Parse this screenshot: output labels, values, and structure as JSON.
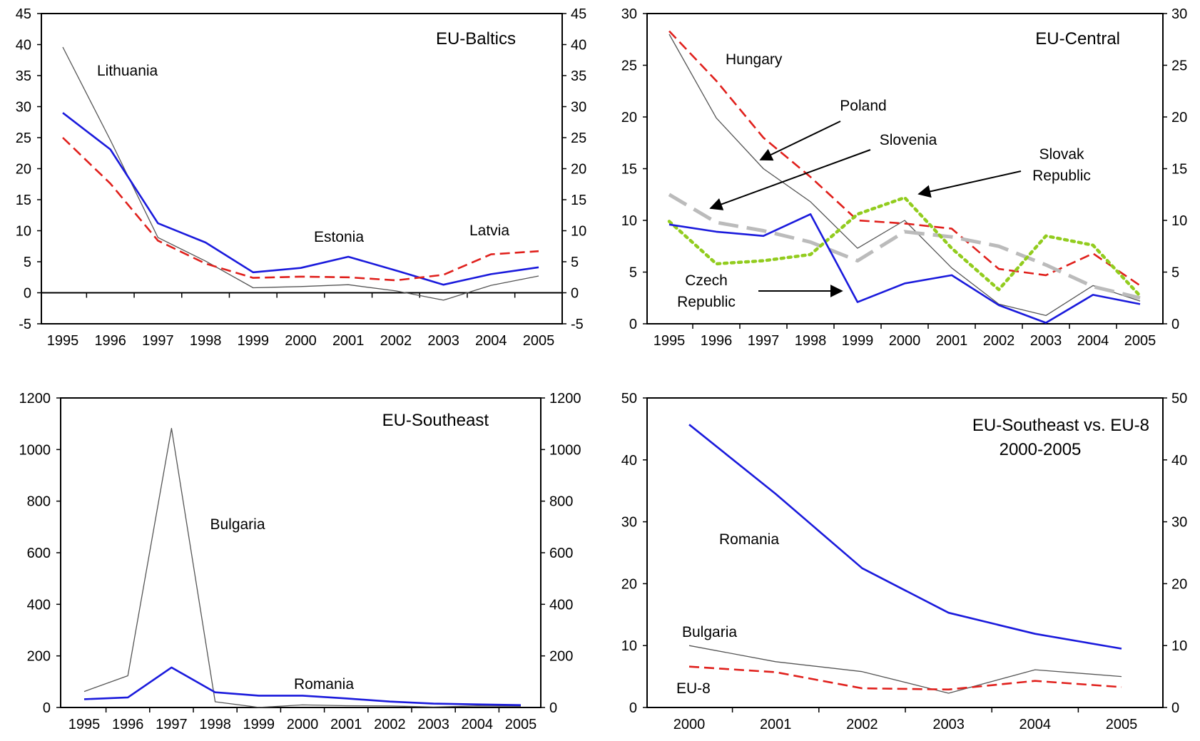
{
  "chart_data": [
    {
      "type": "line",
      "title": "EU-Baltics",
      "x": [
        "1995",
        "1996",
        "1997",
        "1998",
        "1999",
        "2000",
        "2001",
        "2002",
        "2003",
        "2004",
        "2005"
      ],
      "ylim": [
        -5,
        45
      ],
      "yticks": [
        -5,
        0,
        5,
        10,
        15,
        20,
        25,
        30,
        35,
        40,
        45
      ],
      "grid": false,
      "zero_line": true,
      "series": [
        {
          "name": "Lithuania",
          "color": "#555555",
          "style": "thin-solid",
          "values": [
            39.6,
            24.6,
            8.9,
            5.1,
            0.8,
            1.0,
            1.3,
            0.3,
            -1.2,
            1.2,
            2.7
          ]
        },
        {
          "name": "Estonia",
          "color": "#1a1adc",
          "style": "solid",
          "values": [
            29.0,
            23.1,
            11.2,
            8.1,
            3.3,
            4.0,
            5.8,
            3.6,
            1.3,
            3.0,
            4.1
          ]
        },
        {
          "name": "Latvia",
          "color": "#e0201c",
          "style": "dashed",
          "values": [
            25.0,
            17.6,
            8.4,
            4.7,
            2.4,
            2.6,
            2.5,
            2.0,
            2.9,
            6.2,
            6.7
          ]
        }
      ]
    },
    {
      "type": "line",
      "title": "EU-Central",
      "x": [
        "1995",
        "1996",
        "1997",
        "1998",
        "1999",
        "2000",
        "2001",
        "2002",
        "2003",
        "2004",
        "2005"
      ],
      "ylim": [
        0,
        30
      ],
      "yticks": [
        0,
        5,
        10,
        15,
        20,
        25,
        30
      ],
      "grid": false,
      "series": [
        {
          "name": "Hungary",
          "color": "#555555",
          "style": "thin-solid",
          "values": [
            28.0,
            19.9,
            15.0,
            11.8,
            7.3,
            10.0,
            5.4,
            1.9,
            0.8,
            3.7,
            2.2
          ]
        },
        {
          "name": "Poland",
          "color": "#e0201c",
          "style": "dashed",
          "values": [
            28.3,
            23.5,
            18.0,
            14.2,
            10.0,
            9.7,
            9.2,
            5.3,
            4.7,
            6.8,
            3.7
          ]
        },
        {
          "name": "Slovenia",
          "color": "#bbbbbb",
          "style": "long-dash",
          "values": [
            12.5,
            9.8,
            9.0,
            7.9,
            6.1,
            8.9,
            8.4,
            7.5,
            5.7,
            3.6,
            2.5
          ]
        },
        {
          "name": "Slovak Republic",
          "color": "#92cc1e",
          "style": "dotted",
          "values": [
            9.9,
            5.8,
            6.1,
            6.7,
            10.6,
            12.2,
            7.3,
            3.3,
            8.5,
            7.6,
            2.7
          ]
        },
        {
          "name": "Czech Republic",
          "color": "#1a1adc",
          "style": "solid",
          "values": [
            9.6,
            8.9,
            8.5,
            10.6,
            2.1,
            3.9,
            4.7,
            1.8,
            0.1,
            2.8,
            1.9
          ]
        }
      ]
    },
    {
      "type": "line",
      "title": "EU-Southeast",
      "x": [
        "1995",
        "1996",
        "1997",
        "1998",
        "1999",
        "2000",
        "2001",
        "2002",
        "2003",
        "2004",
        "2005"
      ],
      "ylim": [
        0,
        1200
      ],
      "yticks": [
        0,
        200,
        400,
        600,
        800,
        1000,
        1200
      ],
      "grid": false,
      "series": [
        {
          "name": "Bulgaria",
          "color": "#555555",
          "style": "thin-solid",
          "values": [
            62,
            123,
            1082,
            22,
            0.3,
            10,
            7,
            6,
            2,
            6,
            5
          ]
        },
        {
          "name": "Romania",
          "color": "#1a1adc",
          "style": "solid",
          "values": [
            32,
            39,
            155,
            59,
            46,
            46,
            35,
            23,
            15,
            12,
            9
          ]
        }
      ]
    },
    {
      "type": "line",
      "title": "EU-Southeast vs. EU-8",
      "subtitle": "2000-2005",
      "x": [
        "2000",
        "2001",
        "2002",
        "2003",
        "2004",
        "2005"
      ],
      "ylim": [
        0,
        50
      ],
      "yticks": [
        0,
        10,
        20,
        30,
        40,
        50
      ],
      "grid": false,
      "series": [
        {
          "name": "Romania",
          "color": "#1a1adc",
          "style": "solid",
          "values": [
            45.7,
            34.5,
            22.5,
            15.3,
            11.9,
            9.5
          ]
        },
        {
          "name": "Bulgaria",
          "color": "#555555",
          "style": "thin-solid",
          "values": [
            10.0,
            7.4,
            5.8,
            2.3,
            6.1,
            5.0
          ]
        },
        {
          "name": "EU-8",
          "color": "#e0201c",
          "style": "dashed",
          "values": [
            6.6,
            5.7,
            3.1,
            2.9,
            4.3,
            3.3
          ]
        }
      ]
    }
  ]
}
